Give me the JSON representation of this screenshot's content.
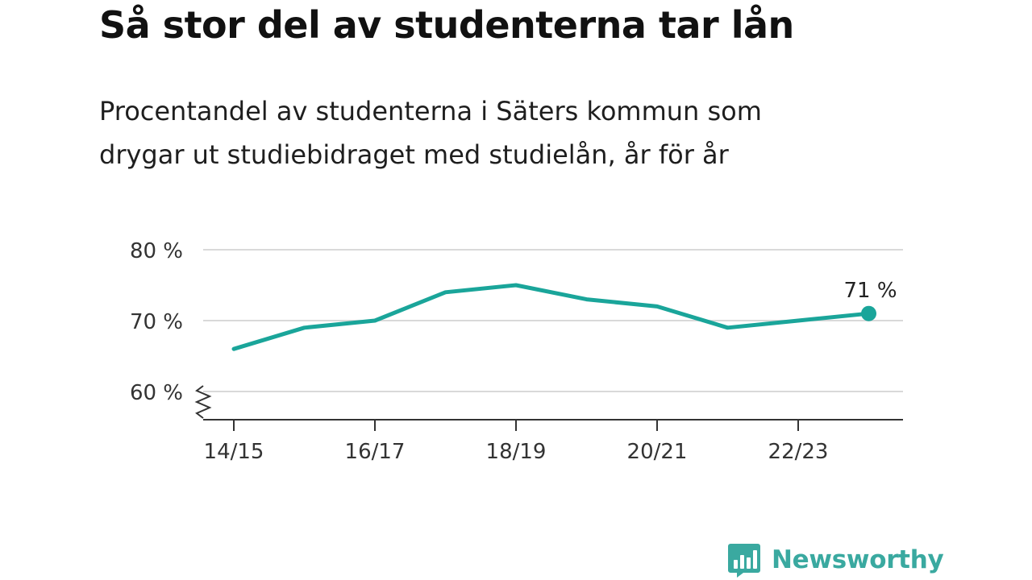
{
  "header": {
    "title": "Så stor del av studenterna tar lån",
    "subtitle_lines": [
      "Procentandel av studenterna i Säters kommun som",
      "drygar ut studiebidraget med studielån, år för år"
    ]
  },
  "chart_data": {
    "type": "line",
    "title": "Så stor del av studenterna tar lån",
    "subtitle": "Procentandel av studenterna i Säters kommun som drygar ut studiebidraget med studielån, år för år",
    "x": [
      "14/15",
      "15/16",
      "16/17",
      "17/18",
      "18/19",
      "19/20",
      "20/21",
      "21/22",
      "22/23",
      "23/24"
    ],
    "x_tick_labels": [
      "14/15",
      "16/17",
      "18/19",
      "20/21",
      "22/23"
    ],
    "series": [
      {
        "values": [
          66,
          69,
          70,
          74,
          75,
          73,
          72,
          69,
          70,
          71
        ],
        "color": "#1aa59a"
      }
    ],
    "y_ticks": [
      60,
      70,
      80
    ],
    "y_tick_labels": [
      "60 %",
      "70 %",
      "80 %"
    ],
    "ylim": [
      56,
      80
    ],
    "y_axis_break": true,
    "grid": true,
    "end_label": "71 %",
    "xlabel": "",
    "ylabel": ""
  },
  "colors": {
    "line": "#1aa59a",
    "grid": "#d9d9d9",
    "axis": "#333333",
    "brand": "#3aa9a0"
  },
  "branding": {
    "name": "Newsworthy",
    "icon": "newsworthy-logo-icon"
  }
}
